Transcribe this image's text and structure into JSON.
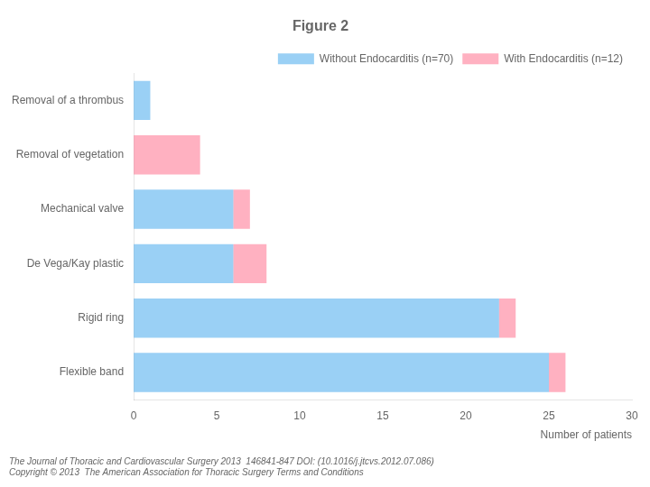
{
  "chart_data": {
    "type": "bar",
    "title": "Figure 2",
    "orientation": "horizontal",
    "stacked": true,
    "categories": [
      "Removal of a thrombus",
      "Removal of vegetation",
      "Mechanical valve",
      "De Vega/Kay plastic",
      "Rigid ring",
      "Flexible band"
    ],
    "series": [
      {
        "name": "Without Endocarditis (n=70)",
        "values": [
          1,
          0,
          6,
          6,
          22,
          25
        ]
      },
      {
        "name": "With Endocarditis (n=12)",
        "values": [
          0,
          4,
          1,
          2,
          1,
          1
        ]
      }
    ],
    "xlabel": "Number of patients",
    "xlim": [
      0,
      30
    ],
    "xticks": [
      0,
      5,
      10,
      15,
      20,
      25,
      30
    ],
    "grid": false,
    "legend": "upper right",
    "annotations": [
      "The Journal of Thoracic and Cardiovascular Surgery 2013  146841-847 DOI: (10.1016/j.jtcvs.2012.07.086)",
      "Copyright © 2013  The American Association for Thoracic Surgery Terms and Conditions"
    ]
  }
}
